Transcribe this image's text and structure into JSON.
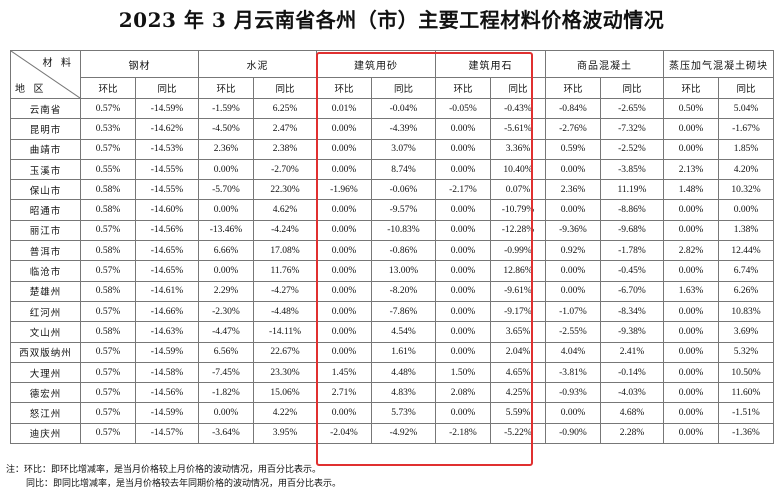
{
  "title": "2023 年 3 月云南省各州（市）主要工程材料价格波动情况",
  "header": {
    "corner_top": "材 料",
    "corner_bottom": "地 区",
    "materials": [
      "钢材",
      "水泥",
      "建筑用砂",
      "建筑用石",
      "商品混凝土",
      "蒸压加气混凝土砌块"
    ],
    "sub_mom": "环比",
    "sub_yoy": "同比"
  },
  "rows": [
    {
      "region": "云南省",
      "v": [
        "0.57%",
        "-14.59%",
        "-1.59%",
        "6.25%",
        "0.01%",
        "-0.04%",
        "-0.05%",
        "-0.43%",
        "-0.84%",
        "-2.65%",
        "0.50%",
        "5.04%"
      ]
    },
    {
      "region": "昆明市",
      "v": [
        "0.53%",
        "-14.62%",
        "-4.50%",
        "2.47%",
        "0.00%",
        "-4.39%",
        "0.00%",
        "-5.61%",
        "-2.76%",
        "-7.32%",
        "0.00%",
        "-1.67%"
      ]
    },
    {
      "region": "曲靖市",
      "v": [
        "0.57%",
        "-14.53%",
        "2.36%",
        "2.38%",
        "0.00%",
        "3.07%",
        "0.00%",
        "3.36%",
        "0.59%",
        "-2.52%",
        "0.00%",
        "1.85%"
      ]
    },
    {
      "region": "玉溪市",
      "v": [
        "0.55%",
        "-14.55%",
        "0.00%",
        "-2.70%",
        "0.00%",
        "8.74%",
        "0.00%",
        "10.40%",
        "0.00%",
        "-3.85%",
        "2.13%",
        "4.20%"
      ]
    },
    {
      "region": "保山市",
      "v": [
        "0.58%",
        "-14.55%",
        "-5.70%",
        "22.30%",
        "-1.96%",
        "-0.06%",
        "-2.17%",
        "0.07%",
        "2.36%",
        "11.19%",
        "1.48%",
        "10.32%"
      ]
    },
    {
      "region": "昭通市",
      "v": [
        "0.58%",
        "-14.60%",
        "0.00%",
        "4.62%",
        "0.00%",
        "-9.57%",
        "0.00%",
        "-10.79%",
        "0.00%",
        "-8.86%",
        "0.00%",
        "0.00%"
      ]
    },
    {
      "region": "丽江市",
      "v": [
        "0.57%",
        "-14.56%",
        "-13.46%",
        "-4.24%",
        "0.00%",
        "-10.83%",
        "0.00%",
        "-12.28%",
        "-9.36%",
        "-9.68%",
        "0.00%",
        "1.38%"
      ]
    },
    {
      "region": "普洱市",
      "v": [
        "0.58%",
        "-14.65%",
        "6.66%",
        "17.08%",
        "0.00%",
        "-0.86%",
        "0.00%",
        "-0.99%",
        "0.92%",
        "-1.78%",
        "2.82%",
        "12.44%"
      ]
    },
    {
      "region": "临沧市",
      "v": [
        "0.57%",
        "-14.65%",
        "0.00%",
        "11.76%",
        "0.00%",
        "13.00%",
        "0.00%",
        "12.86%",
        "0.00%",
        "-0.45%",
        "0.00%",
        "6.74%"
      ]
    },
    {
      "region": "楚雄州",
      "v": [
        "0.58%",
        "-14.61%",
        "2.29%",
        "-4.27%",
        "0.00%",
        "-8.20%",
        "0.00%",
        "-9.61%",
        "0.00%",
        "-6.70%",
        "1.63%",
        "6.26%"
      ]
    },
    {
      "region": "红河州",
      "v": [
        "0.57%",
        "-14.66%",
        "-2.30%",
        "-4.48%",
        "0.00%",
        "-7.86%",
        "0.00%",
        "-9.17%",
        "-1.07%",
        "-8.34%",
        "0.00%",
        "10.83%"
      ]
    },
    {
      "region": "文山州",
      "v": [
        "0.58%",
        "-14.63%",
        "-4.47%",
        "-14.11%",
        "0.00%",
        "4.54%",
        "0.00%",
        "3.65%",
        "-2.55%",
        "-9.38%",
        "0.00%",
        "3.69%"
      ]
    },
    {
      "region": "西双版纳州",
      "v": [
        "0.57%",
        "-14.59%",
        "6.56%",
        "22.67%",
        "0.00%",
        "1.61%",
        "0.00%",
        "2.04%",
        "4.04%",
        "2.41%",
        "0.00%",
        "5.32%"
      ]
    },
    {
      "region": "大理州",
      "v": [
        "0.57%",
        "-14.58%",
        "-7.45%",
        "23.30%",
        "1.45%",
        "4.48%",
        "1.50%",
        "4.65%",
        "-3.81%",
        "-0.14%",
        "0.00%",
        "10.50%"
      ]
    },
    {
      "region": "德宏州",
      "v": [
        "0.57%",
        "-14.56%",
        "-1.82%",
        "15.06%",
        "2.71%",
        "4.83%",
        "2.08%",
        "4.25%",
        "-0.93%",
        "-4.03%",
        "0.00%",
        "11.60%"
      ]
    },
    {
      "region": "怒江州",
      "v": [
        "0.57%",
        "-14.59%",
        "0.00%",
        "4.22%",
        "0.00%",
        "5.73%",
        "0.00%",
        "5.59%",
        "0.00%",
        "4.68%",
        "0.00%",
        "-1.51%"
      ]
    },
    {
      "region": "迪庆州",
      "v": [
        "0.57%",
        "-14.57%",
        "-3.64%",
        "3.95%",
        "-2.04%",
        "-4.92%",
        "-2.18%",
        "-5.22%",
        "-0.90%",
        "2.28%",
        "0.00%",
        "-1.36%"
      ]
    }
  ],
  "notes": [
    "注：环比：即环比增减率，是当月价格较上月价格的波动情况，用百分比表示。",
    "同比：即同比增减率，是当月价格较去年同期价格的波动情况，用百分比表示。"
  ],
  "colors": {
    "highlight_box": "#e03030",
    "grid": "#777777"
  }
}
